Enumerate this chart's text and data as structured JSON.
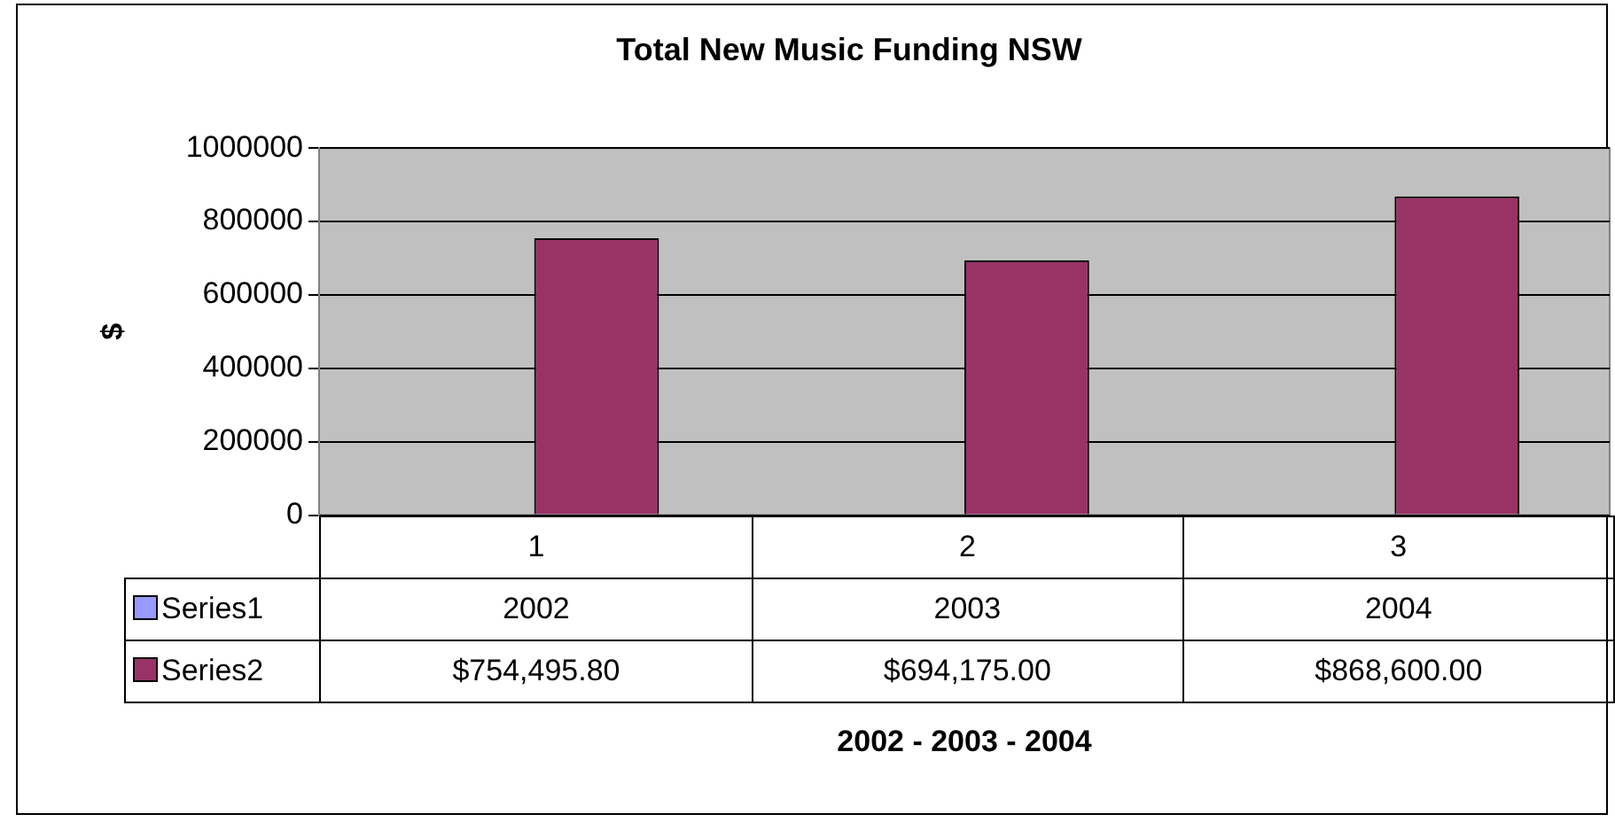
{
  "chart_data": {
    "type": "bar",
    "title": "Total New Music Funding NSW",
    "annotations": [
      "2002 - 2003 - 2004"
    ],
    "ylabel": "$",
    "categories": [
      "1",
      "2",
      "3"
    ],
    "series": [
      {
        "name": "Series1",
        "color": "#9999ff",
        "values": [
          2002,
          2003,
          2004
        ],
        "value_labels": [
          "2002",
          "2003",
          "2004"
        ]
      },
      {
        "name": "Series2",
        "color": "#993366",
        "values": [
          754495.8,
          694175,
          868600
        ],
        "value_labels": [
          "$754,495.80",
          "$694,175.00",
          "$868,600.00"
        ]
      }
    ],
    "ylim": [
      0,
      1000000
    ],
    "yticks": [
      0,
      200000,
      400000,
      600000,
      800000,
      1000000
    ],
    "grid": "y",
    "legend": "bottom left"
  }
}
